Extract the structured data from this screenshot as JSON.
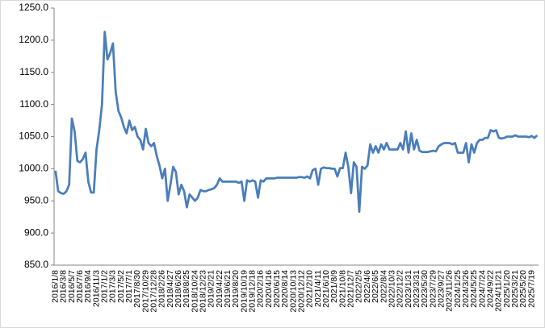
{
  "chart_data": {
    "type": "line",
    "color": "#4a7ebb",
    "categories": [
      "2016/1/8",
      null,
      null,
      "2016/3/8",
      null,
      null,
      "2016/5/7",
      null,
      null,
      "2016/7/6",
      null,
      null,
      "2016/9/4",
      null,
      null,
      "2016/11/3",
      null,
      null,
      "2017/1/2",
      null,
      null,
      "2017/3/3",
      null,
      null,
      "2017/5/2",
      null,
      null,
      "2017/7/1",
      null,
      null,
      "2017/8/30",
      null,
      null,
      "2017/10/29",
      null,
      null,
      "2017/12/28",
      null,
      null,
      "2018/2/26",
      null,
      null,
      "2018/4/27",
      null,
      null,
      "2018/6/26",
      null,
      null,
      "2018/8/25",
      null,
      null,
      "2018/10/24",
      null,
      null,
      "2018/12/23",
      null,
      null,
      "2019/2/21",
      null,
      null,
      "2019/4/22",
      null,
      null,
      "2019/6/21",
      null,
      null,
      "2019/8/20",
      null,
      null,
      "2019/10/19",
      null,
      null,
      "2019/12/18",
      null,
      null,
      "2020/2/16",
      null,
      null,
      "2020/4/16",
      null,
      null,
      "2020/6/15",
      null,
      null,
      "2020/8/14",
      null,
      null,
      "2020/10/13",
      null,
      null,
      "2020/12/12",
      null,
      null,
      "2021/2/10",
      null,
      null,
      "2021/4/11",
      null,
      null,
      "2021/6/10",
      null,
      null,
      "2021/8/9",
      null,
      null,
      "2021/10/8",
      null,
      null,
      "2021/12/7",
      null,
      null,
      "2022/2/5",
      null,
      null,
      "2022/4/6",
      null,
      null,
      "2022/6/5",
      null,
      null,
      "2022/8/4",
      null,
      null,
      "2022/10/3",
      null,
      null,
      "2022/12/2",
      null,
      null,
      "2023/1/31",
      null,
      null,
      "2023/3/31",
      null,
      null,
      "2023/5/30",
      null,
      null,
      "2023/7/29",
      null,
      null,
      "2023/9/27",
      null,
      null,
      "2023/11/26",
      null,
      null,
      "2024/1/25",
      null,
      null,
      "2024/3/26",
      null,
      null,
      "2024/5/25",
      null,
      null,
      "2024/7/24",
      null,
      null,
      "2024/9/22",
      null,
      null,
      "2024/11/21",
      null,
      null,
      "2025/1/20",
      null,
      null,
      "2025/3/21",
      null,
      null,
      "2025/5/20",
      null,
      null,
      "2025/7/19",
      null,
      null
    ],
    "values": [
      997,
      965,
      962,
      961,
      965,
      975,
      1078,
      1058,
      1012,
      1010,
      1015,
      1025,
      980,
      963,
      963,
      1030,
      1060,
      1100,
      1213,
      1170,
      1180,
      1195,
      1120,
      1090,
      1080,
      1065,
      1055,
      1075,
      1060,
      1065,
      1050,
      1045,
      1030,
      1062,
      1040,
      1035,
      1040,
      1020,
      1005,
      985,
      1000,
      950,
      975,
      1003,
      995,
      960,
      975,
      965,
      940,
      960,
      955,
      950,
      955,
      967,
      965,
      965,
      967,
      968,
      970,
      975,
      985,
      980,
      980,
      980,
      980,
      980,
      980,
      978,
      980,
      950,
      982,
      980,
      982,
      980,
      955,
      982,
      980,
      985,
      985,
      985,
      985,
      986,
      986,
      986,
      986,
      986,
      986,
      986,
      986,
      987,
      987,
      986,
      988,
      985,
      998,
      1000,
      975,
      1000,
      1002,
      1001,
      1001,
      1000,
      1000,
      988,
      1001,
      1001,
      1025,
      1003,
      962,
      1010,
      1003,
      933,
      1003,
      1000,
      1005,
      1038,
      1025,
      1035,
      1025,
      1038,
      1030,
      1040,
      1030,
      1030,
      1030,
      1030,
      1040,
      1030,
      1058,
      1025,
      1055,
      1030,
      1045,
      1028,
      1026,
      1026,
      1026,
      1027,
      1028,
      1027,
      1035,
      1038,
      1040,
      1040,
      1040,
      1038,
      1040,
      1025,
      1025,
      1025,
      1040,
      1010,
      1038,
      1025,
      1040,
      1045,
      1045,
      1048,
      1048,
      1060,
      1058,
      1060,
      1048,
      1047,
      1048,
      1050,
      1050,
      1050,
      1052,
      1050,
      1050,
      1050,
      1050,
      1049,
      1051,
      1048,
      1052
    ],
    "ylim": [
      850,
      1250
    ],
    "yticks": [
      {
        "value": 850,
        "label": "850.0"
      },
      {
        "value": 900,
        "label": "900.0"
      },
      {
        "value": 950,
        "label": "950.0"
      },
      {
        "value": 1000,
        "label": "1000.0"
      },
      {
        "value": 1050,
        "label": "1050.0"
      },
      {
        "value": 1100,
        "label": "1100.0"
      },
      {
        "value": 1150,
        "label": "1150.0"
      },
      {
        "value": 1200,
        "label": "1200.0"
      },
      {
        "value": 1250,
        "label": "1250.0"
      }
    ],
    "grid": false
  }
}
